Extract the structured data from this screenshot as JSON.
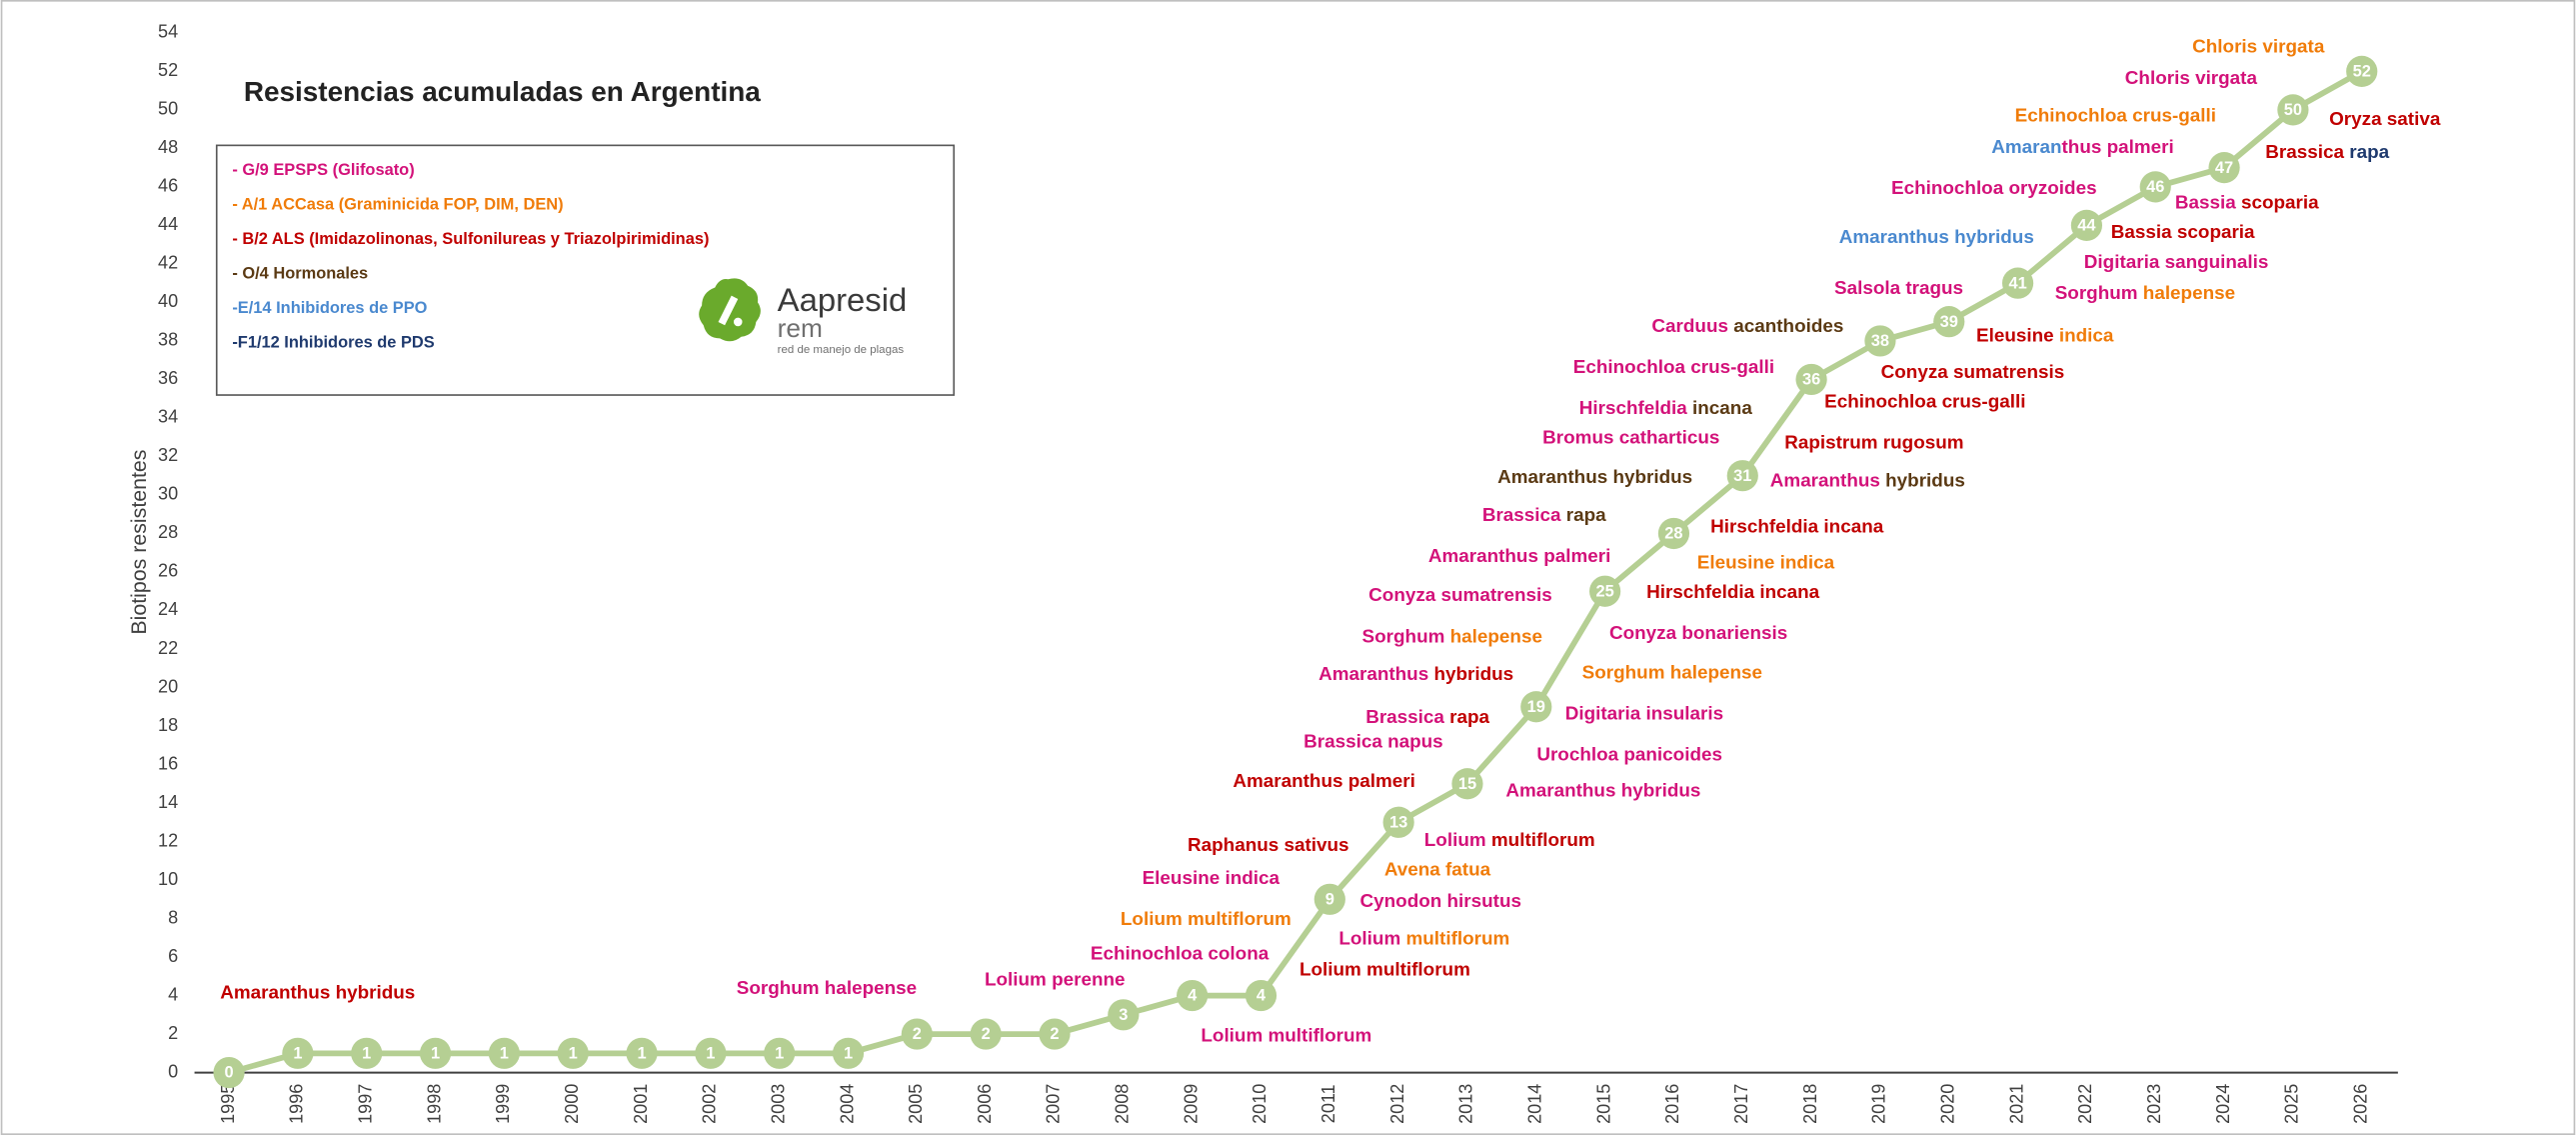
{
  "chart_data": {
    "type": "line",
    "title": "Resistencias acumuladas en Argentina",
    "y_label": "Biotipos resistentes",
    "categories": [
      "1995",
      "1996",
      "1997",
      "1998",
      "1999",
      "2000",
      "2001",
      "2002",
      "2003",
      "2004",
      "2005",
      "2006",
      "2007",
      "2008",
      "2009",
      "2010",
      "2011",
      "2012",
      "2013",
      "2014",
      "2015",
      "2016",
      "2017",
      "2018",
      "2019",
      "2020",
      "2021",
      "2022",
      "2023",
      "2024",
      "2025",
      "2026"
    ],
    "values": [
      0,
      1,
      1,
      1,
      1,
      1,
      1,
      1,
      1,
      1,
      2,
      2,
      2,
      3,
      4,
      4,
      9,
      13,
      15,
      19,
      25,
      28,
      31,
      36,
      38,
      39,
      41,
      44,
      46,
      47,
      50,
      52
    ],
    "color": "#b5cf93",
    "ylim": [
      0,
      54
    ],
    "yticks": [
      0,
      2,
      4,
      6,
      8,
      10,
      12,
      14,
      16,
      18,
      20,
      22,
      24,
      26,
      28,
      30,
      32,
      34,
      36,
      38,
      40,
      42,
      44,
      46,
      48,
      50,
      52,
      54
    ],
    "grid": false,
    "legend_box": {
      "lines": [
        {
          "text": "- G/9 EPSPS (Glifosato)",
          "color": "#d3127a"
        },
        {
          "text": "- A/1 ACCasa (Graminicida FOP, DIM, DEN)",
          "color": "#f07c0a"
        },
        {
          "text": "- B/2 ALS (Imidazolinonas, Sulfonilureas y Triazolpirimidinas)",
          "color": "#c00000"
        },
        {
          "text": "- O/4 Hormonales",
          "color": "#5b3a14"
        },
        {
          "text": "-E/14 Inhibidores de PPO",
          "color": "#4a89cf"
        },
        {
          "text": "-F1/12  Inhibidores de PDS",
          "color": "#1f3a6e"
        }
      ]
    },
    "logo": {
      "name": "Aapresid",
      "subtitle": "rem",
      "tagline": "red de manejo de plagas"
    },
    "annotations": [
      {
        "parts": [
          {
            "text": "Amaranthus hybridus",
            "color": "#c00000"
          }
        ]
      },
      {
        "parts": [
          {
            "text": "Sorghum halepense",
            "color": "#d3127a"
          }
        ]
      },
      {
        "parts": [
          {
            "text": "Lolium perenne",
            "color": "#d3127a"
          }
        ]
      },
      {
        "parts": [
          {
            "text": "Echinochloa colona",
            "color": "#d3127a"
          }
        ]
      },
      {
        "parts": [
          {
            "text": "Lolium multiflorum",
            "color": "#f07c0a"
          }
        ]
      },
      {
        "parts": [
          {
            "text": "Eleusine indica",
            "color": "#d3127a"
          }
        ]
      },
      {
        "parts": [
          {
            "text": "Raphanus sativus",
            "color": "#c00000"
          }
        ]
      },
      {
        "parts": [
          {
            "text": "Lolium multiflorum",
            "color": "#d3127a"
          }
        ]
      },
      {
        "parts": [
          {
            "text": "Lolium multiflorum",
            "color": "#c00000"
          }
        ]
      },
      {
        "parts": [
          {
            "text": "Lolium ",
            "color": "#d3127a"
          },
          {
            "text": "multiflorum",
            "color": "#f07c0a"
          }
        ]
      },
      {
        "parts": [
          {
            "text": "Cynodon hirsutus",
            "color": "#d3127a"
          }
        ]
      },
      {
        "parts": [
          {
            "text": "Avena fatua",
            "color": "#f07c0a"
          }
        ]
      },
      {
        "parts": [
          {
            "text": "Lolium ",
            "color": "#d3127a"
          },
          {
            "text": "multiflorum",
            "color": "#c00000"
          }
        ]
      },
      {
        "parts": [
          {
            "text": "Amaranthus palmeri",
            "color": "#c00000"
          }
        ]
      },
      {
        "parts": [
          {
            "text": "Brassica napus",
            "color": "#d3127a"
          }
        ]
      },
      {
        "parts": [
          {
            "text": "Brassica ",
            "color": "#d3127a"
          },
          {
            "text": "rapa",
            "color": "#c00000"
          }
        ]
      },
      {
        "parts": [
          {
            "text": "Amaranthus ",
            "color": "#d3127a"
          },
          {
            "text": "hybridus",
            "color": "#c00000"
          }
        ]
      },
      {
        "parts": [
          {
            "text": "Amaranthus hybridus",
            "color": "#d3127a"
          }
        ]
      },
      {
        "parts": [
          {
            "text": "Urochloa panicoides",
            "color": "#d3127a"
          }
        ]
      },
      {
        "parts": [
          {
            "text": "Digitaria insularis",
            "color": "#d3127a"
          }
        ]
      },
      {
        "parts": [
          {
            "text": "Sorghum halepense",
            "color": "#f07c0a"
          }
        ]
      },
      {
        "parts": [
          {
            "text": "Conyza bonariensis",
            "color": "#d3127a"
          }
        ]
      },
      {
        "parts": [
          {
            "text": "Sorghum ",
            "color": "#d3127a"
          },
          {
            "text": "halepense",
            "color": "#f07c0a"
          }
        ]
      },
      {
        "parts": [
          {
            "text": "Conyza sumatrensis",
            "color": "#d3127a"
          }
        ]
      },
      {
        "parts": [
          {
            "text": "Amaranthus palmeri",
            "color": "#d3127a"
          }
        ]
      },
      {
        "parts": [
          {
            "text": "Hirschfeldia incana",
            "color": "#c00000"
          }
        ]
      },
      {
        "parts": [
          {
            "text": "Eleusine indica",
            "color": "#f07c0a"
          }
        ]
      },
      {
        "parts": [
          {
            "text": "Hirschfeldia incana",
            "color": "#c00000"
          }
        ]
      },
      {
        "parts": [
          {
            "text": "Brassica ",
            "color": "#d3127a"
          },
          {
            "text": "rapa",
            "color": "#5b3a14"
          }
        ]
      },
      {
        "parts": [
          {
            "text": "Amaranthus hybridus",
            "color": "#5b3a14"
          }
        ]
      },
      {
        "parts": [
          {
            "text": "Bromus catharticus",
            "color": "#d3127a"
          }
        ]
      },
      {
        "parts": [
          {
            "text": "Hirschfeldia ",
            "color": "#d3127a"
          },
          {
            "text": "incana",
            "color": "#5b3a14"
          }
        ]
      },
      {
        "parts": [
          {
            "text": "Echinochloa crus-galli",
            "color": "#d3127a"
          }
        ]
      },
      {
        "parts": [
          {
            "text": "Carduus ",
            "color": "#d3127a"
          },
          {
            "text": "acanthoides",
            "color": "#5b3a14"
          }
        ]
      },
      {
        "parts": [
          {
            "text": "Amaranthus ",
            "color": "#d3127a"
          },
          {
            "text": "hybridus",
            "color": "#5b3a14"
          }
        ]
      },
      {
        "parts": [
          {
            "text": "Rapistrum rugosum",
            "color": "#c00000"
          }
        ]
      },
      {
        "parts": [
          {
            "text": "Echinochloa crus-galli",
            "color": "#c00000"
          }
        ]
      },
      {
        "parts": [
          {
            "text": "Conyza sumatrensis",
            "color": "#c00000"
          }
        ]
      },
      {
        "parts": [
          {
            "text": "Salsola tragus",
            "color": "#d3127a"
          }
        ]
      },
      {
        "parts": [
          {
            "text": "Eleusine ",
            "color": "#c00000"
          },
          {
            "text": "indica",
            "color": "#f07c0a"
          }
        ]
      },
      {
        "parts": [
          {
            "text": "Amaranthus hybridus",
            "color": "#4a89cf"
          }
        ]
      },
      {
        "parts": [
          {
            "text": "Sorghum ",
            "color": "#d3127a"
          },
          {
            "text": "halepense",
            "color": "#f07c0a"
          }
        ]
      },
      {
        "parts": [
          {
            "text": "Digitaria sanguinalis",
            "color": "#d3127a"
          }
        ]
      },
      {
        "parts": [
          {
            "text": "Echinochloa oryzoides",
            "color": "#d3127a"
          }
        ]
      },
      {
        "parts": [
          {
            "text": "Bassia scoparia",
            "color": "#c00000"
          }
        ]
      },
      {
        "parts": [
          {
            "text": "Bassia ",
            "color": "#d3127a"
          },
          {
            "text": "scoparia",
            "color": "#c00000"
          }
        ]
      },
      {
        "parts": [
          {
            "text": "Amaran",
            "color": "#4a89cf"
          },
          {
            "text": "thus palmeri",
            "color": "#d3127a"
          }
        ]
      },
      {
        "parts": [
          {
            "text": "Echinochloa crus-galli",
            "color": "#f07c0a"
          }
        ]
      },
      {
        "parts": [
          {
            "text": "Chloris virgata",
            "color": "#d3127a"
          }
        ]
      },
      {
        "parts": [
          {
            "text": "Chloris virgata",
            "color": "#f07c0a"
          }
        ]
      },
      {
        "parts": [
          {
            "text": "Oryza sativa",
            "color": "#c00000"
          }
        ]
      },
      {
        "parts": [
          {
            "text": "Brassica ",
            "color": "#c00000"
          },
          {
            "text": "rapa",
            "color": "#1f3a6e"
          }
        ]
      }
    ]
  }
}
